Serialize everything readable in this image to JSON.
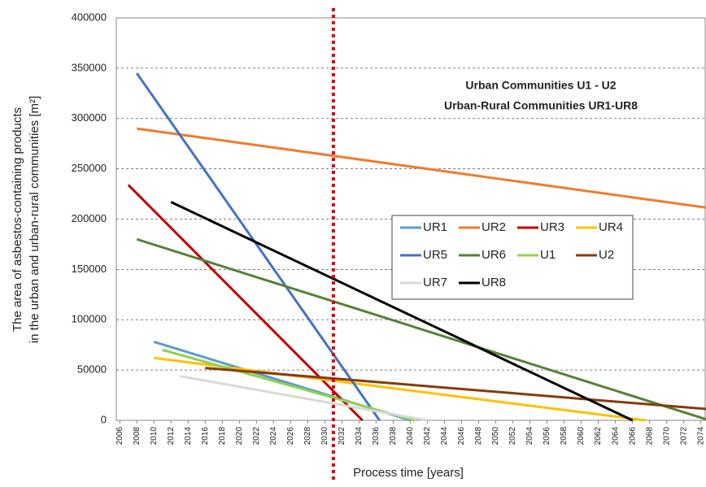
{
  "chart_data": {
    "type": "line",
    "annotations": [
      "Urban Communities U1 - U2",
      "Urban-Rural Communities UR1-UR8"
    ],
    "xlabel": "Process time [years]",
    "ylabel": [
      "The area of asbestos-containing products",
      "in the urban and urban-rural communities [m²]"
    ],
    "xlim": [
      2005.6,
      2074.6
    ],
    "ylim": [
      0,
      400000
    ],
    "yticks": [
      0,
      50000,
      100000,
      150000,
      200000,
      250000,
      300000,
      350000,
      400000
    ],
    "xticks": [
      2006,
      2008,
      2010,
      2012,
      2014,
      2016,
      2018,
      2020,
      2022,
      2024,
      2026,
      2028,
      2030,
      2032,
      2034,
      2036,
      2038,
      2040,
      2042,
      2044,
      2046,
      2048,
      2050,
      2052,
      2054,
      2056,
      2058,
      2060,
      2062,
      2064,
      2066,
      2068,
      2070,
      2072,
      2074
    ],
    "grid": true,
    "vline": {
      "x": 2031,
      "color": "#e00000"
    },
    "series": [
      {
        "name": "UR1",
        "color": "#5b9bd5",
        "x": [
          2010,
          2040
        ],
        "values": [
          78000,
          0
        ]
      },
      {
        "name": "UR2",
        "color": "#ed7d31",
        "x": [
          2008,
          2075
        ],
        "values": [
          290000,
          211000
        ]
      },
      {
        "name": "UR3",
        "color": "#c00000",
        "x": [
          2007,
          2034.4
        ],
        "values": [
          234000,
          0
        ]
      },
      {
        "name": "UR4",
        "color": "#ffc000",
        "x": [
          2010,
          2067.5
        ],
        "values": [
          62000,
          0
        ]
      },
      {
        "name": "UR5",
        "color": "#4472c4",
        "x": [
          2008,
          2036.4
        ],
        "values": [
          345000,
          0
        ]
      },
      {
        "name": "UR6",
        "color": "#548235",
        "x": [
          2008,
          2075
        ],
        "values": [
          180000,
          0
        ]
      },
      {
        "name": "U1",
        "color": "#92d050",
        "x": [
          2011,
          2040.5
        ],
        "values": [
          70000,
          0
        ]
      },
      {
        "name": "U2",
        "color": "#843c0c",
        "x": [
          2016,
          2075
        ],
        "values": [
          52000,
          11000
        ]
      },
      {
        "name": "UR7",
        "color": "#d9d9d9",
        "x": [
          2013,
          2042
        ],
        "values": [
          44000,
          0
        ]
      },
      {
        "name": "UR8",
        "color": "#000000",
        "x": [
          2012,
          2066
        ],
        "values": [
          217000,
          0
        ]
      }
    ]
  }
}
